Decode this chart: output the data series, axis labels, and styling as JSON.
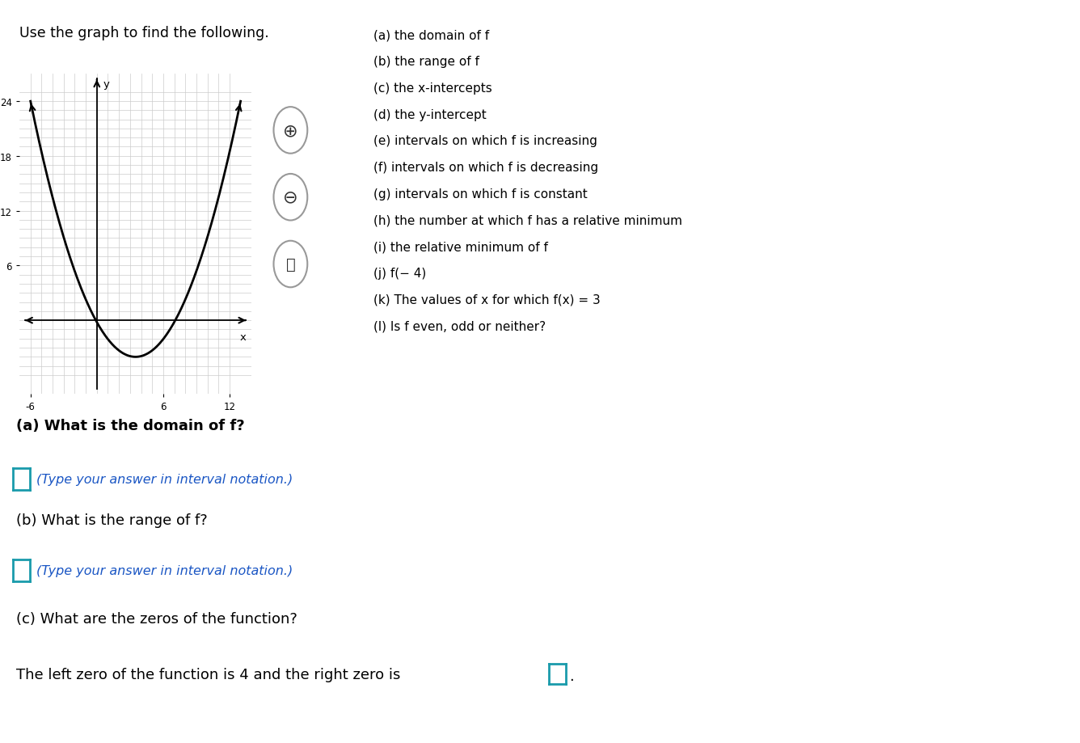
{
  "bg_color": "#ffffff",
  "white": "#ffffff",
  "top_text": "Use the graph to find the following.",
  "right_list": [
    "(a) the domain of f",
    "(b) the range of f",
    "(c) the x-intercepts",
    "(d) the y-intercept",
    "(e) intervals on which f is increasing",
    "(f) intervals on which f is decreasing",
    "(g) intervals on which f is constant",
    "(h) the number at which f has a relative minimum",
    "(i) the relative minimum of f",
    "(j) f(− 4)",
    "(k) The values of x for which f(x) = 3",
    "(l) Is f even, odd or neither?"
  ],
  "qa_label": "(a) What is the domain of f?",
  "qa_highlight_color": "#a8d4f5",
  "qb_label": "(b) What is the range of f?",
  "interval_notation_text": "(Type your answer in interval notation.)",
  "interval_notation_color": "#1a56c4",
  "qc_label": "(c) What are the zeros of the function?",
  "qc_answer_text": "The left zero of the function is 4 and the right zero is",
  "box_color": "#1a9bab",
  "separator_color": "#c8c8c8",
  "grid_color": "#cccccc",
  "curve_color": "#000000"
}
